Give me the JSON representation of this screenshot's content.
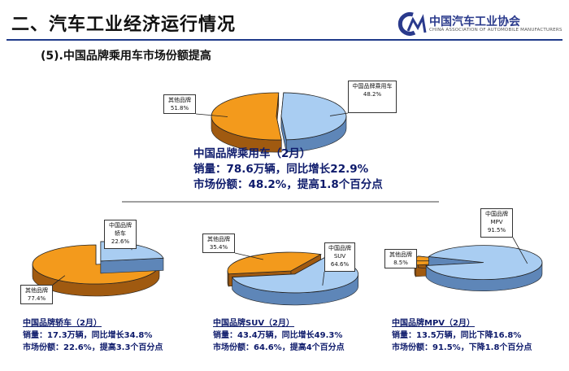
{
  "slide": {
    "title": "二、汽车工业经济运行情况",
    "subtitle": "(5).中国品牌乘用车市场份额提高",
    "logo": {
      "cn": "中国汽车工业协会",
      "en": "CHINA ASSOCIATION OF AUTOMOBILE MANUFACTURERS"
    }
  },
  "colors": {
    "china_brand": "#a9cdf2",
    "china_brand_side": "#5e86b8",
    "other_brand": "#f39a1c",
    "other_brand_side": "#a05a10",
    "summary_text": "#0d1a6b"
  },
  "chart_data": [
    {
      "type": "pie",
      "slices": [
        {
          "name": "中国品牌乘用车",
          "label": "中国品牌乘用车\n48.2%",
          "value": 48.2
        },
        {
          "name": "其他品牌",
          "label": "其他品牌\n51.8%",
          "value": 51.8
        }
      ],
      "caption": [
        "中国品牌乘用车（2月）",
        "销量：78.6万辆，同比增长22.9%",
        "市场份额：48.2%，提高1.8个百分点"
      ]
    },
    {
      "type": "pie",
      "slices": [
        {
          "name": "中国品牌轿车",
          "label": "中国品牌\n轿车\n22.6%",
          "value": 22.6
        },
        {
          "name": "其他品牌",
          "label": "其他品牌\n77.4%",
          "value": 77.4
        }
      ],
      "caption": [
        "中国品牌轿车（2月）",
        "销量：17.3万辆，同比增长34.8%",
        "市场份额：22.6%，提高3.3个百分点"
      ]
    },
    {
      "type": "pie",
      "slices": [
        {
          "name": "中国品牌SUV",
          "label": "中国品牌\nSUV\n64.6%",
          "value": 64.6
        },
        {
          "name": "其他品牌",
          "label": "其他品牌\n35.4%",
          "value": 35.4
        }
      ],
      "caption": [
        "中国品牌SUV（2月）",
        "销量：43.4万辆，同比增长49.3%",
        "市场份额：64.6%，提高4个百分点"
      ]
    },
    {
      "type": "pie",
      "slices": [
        {
          "name": "中国品牌MPV",
          "label": "中国品牌\nMPV\n91.5%",
          "value": 91.5
        },
        {
          "name": "其他品牌",
          "label": "其他品牌\n8.5%",
          "value": 8.5
        }
      ],
      "caption": [
        "中国品牌MPV（2月）",
        "销量：13.5万辆，同比下降16.8%",
        "市场份额：91.5%，下降1.8个百分点"
      ]
    }
  ]
}
